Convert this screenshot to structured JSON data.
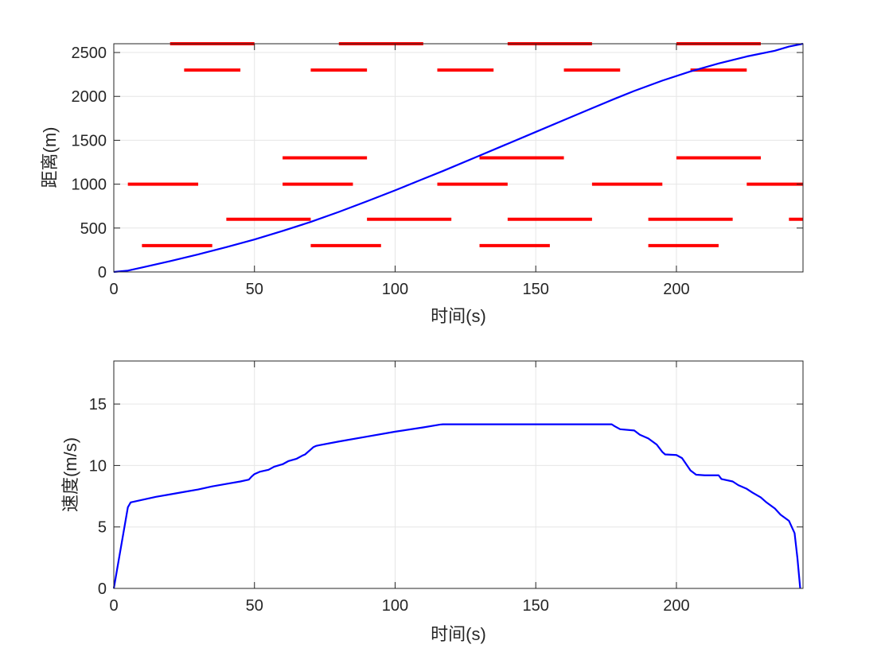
{
  "colors": {
    "curve": "#0000ff",
    "segments": "#ff0000",
    "grid": "#e6e6e6",
    "axes": "#262626",
    "background": "#ffffff"
  },
  "chart_data": [
    {
      "type": "line",
      "xlabel": "时间(s)",
      "ylabel": "距离(m)",
      "xlim": [
        0,
        245
      ],
      "ylim": [
        0,
        2600
      ],
      "xticks": [
        "0",
        "50",
        "100",
        "150",
        "200"
      ],
      "yticks": [
        "0",
        "500",
        "1000",
        "1500",
        "2000",
        "2500"
      ],
      "grid": true,
      "series": [
        {
          "color": "#0000ff",
          "x": [
            0,
            5,
            10,
            20,
            30,
            40,
            50,
            60,
            70,
            80,
            90,
            100,
            110,
            117,
            130,
            140,
            150,
            160,
            170,
            178,
            185,
            195,
            205,
            215,
            225,
            235,
            240,
            245
          ],
          "y": [
            0,
            15,
            50,
            123,
            200,
            283,
            370,
            467,
            570,
            684,
            805,
            930,
            1060,
            1150,
            1325,
            1460,
            1595,
            1730,
            1865,
            1972,
            2062,
            2180,
            2285,
            2375,
            2455,
            2520,
            2568,
            2600
          ]
        }
      ],
      "segments": [
        {
          "y": 2600,
          "x": [
            20,
            50
          ]
        },
        {
          "y": 2600,
          "x": [
            80,
            110
          ]
        },
        {
          "y": 2600,
          "x": [
            140,
            170
          ]
        },
        {
          "y": 2600,
          "x": [
            200,
            230
          ]
        },
        {
          "y": 2300,
          "x": [
            25,
            45
          ]
        },
        {
          "y": 2300,
          "x": [
            70,
            90
          ]
        },
        {
          "y": 2300,
          "x": [
            115,
            135
          ]
        },
        {
          "y": 2300,
          "x": [
            160,
            180
          ]
        },
        {
          "y": 2300,
          "x": [
            205,
            225
          ]
        },
        {
          "y": 1300,
          "x": [
            60,
            90
          ]
        },
        {
          "y": 1300,
          "x": [
            130,
            160
          ]
        },
        {
          "y": 1300,
          "x": [
            200,
            230
          ]
        },
        {
          "y": 1000,
          "x": [
            5,
            30
          ]
        },
        {
          "y": 1000,
          "x": [
            60,
            85
          ]
        },
        {
          "y": 1000,
          "x": [
            115,
            140
          ]
        },
        {
          "y": 1000,
          "x": [
            170,
            195
          ]
        },
        {
          "y": 1000,
          "x": [
            225,
            245
          ]
        },
        {
          "y": 600,
          "x": [
            40,
            70
          ]
        },
        {
          "y": 600,
          "x": [
            90,
            120
          ]
        },
        {
          "y": 600,
          "x": [
            140,
            170
          ]
        },
        {
          "y": 600,
          "x": [
            190,
            220
          ]
        },
        {
          "y": 600,
          "x": [
            240,
            245
          ]
        },
        {
          "y": 300,
          "x": [
            10,
            35
          ]
        },
        {
          "y": 300,
          "x": [
            70,
            95
          ]
        },
        {
          "y": 300,
          "x": [
            130,
            155
          ]
        },
        {
          "y": 300,
          "x": [
            190,
            215
          ]
        }
      ]
    },
    {
      "type": "line",
      "xlabel": "时间(s)",
      "ylabel": "速度(m/s)",
      "xlim": [
        0,
        245
      ],
      "ylim": [
        0,
        18.5
      ],
      "xticks": [
        "0",
        "50",
        "100",
        "150",
        "200"
      ],
      "yticks": [
        "0",
        "5",
        "10",
        "15"
      ],
      "grid": true,
      "series": [
        {
          "color": "#0000ff",
          "x": [
            0,
            5,
            6,
            10,
            15,
            20,
            25,
            30,
            34,
            35,
            40,
            45,
            48,
            49,
            50,
            52,
            55,
            57,
            60,
            62,
            65,
            67,
            68,
            70,
            71,
            72,
            73,
            80,
            90,
            100,
            110,
            116,
            117,
            170,
            177,
            178,
            180,
            185,
            187,
            190,
            193,
            195,
            196,
            200,
            202,
            205,
            207,
            210,
            215,
            216,
            220,
            222,
            225,
            227,
            230,
            232,
            235,
            237,
            240,
            241,
            242,
            243,
            244
          ],
          "y": [
            0,
            6.6,
            7.0,
            7.2,
            7.45,
            7.65,
            7.85,
            8.05,
            8.25,
            8.3,
            8.5,
            8.7,
            8.85,
            9.1,
            9.3,
            9.5,
            9.65,
            9.9,
            10.1,
            10.35,
            10.55,
            10.8,
            10.9,
            11.3,
            11.5,
            11.6,
            11.65,
            11.95,
            12.35,
            12.75,
            13.1,
            13.33,
            13.35,
            13.35,
            13.35,
            13.2,
            12.95,
            12.85,
            12.5,
            12.2,
            11.7,
            11.1,
            10.9,
            10.85,
            10.6,
            9.6,
            9.25,
            9.2,
            9.2,
            8.9,
            8.7,
            8.4,
            8.1,
            7.8,
            7.4,
            7.0,
            6.5,
            6.0,
            5.5,
            5.0,
            4.5,
            2.5,
            0
          ]
        }
      ]
    }
  ]
}
